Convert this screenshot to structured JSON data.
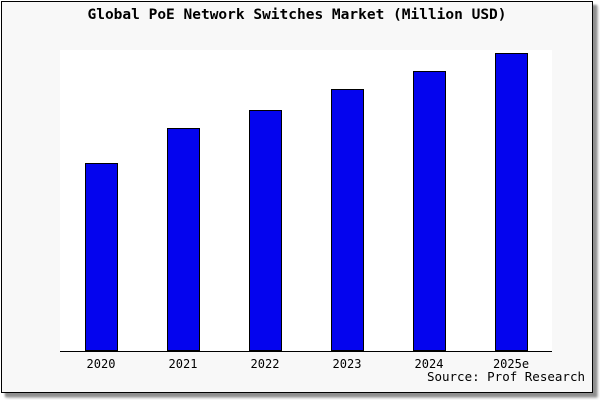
{
  "chart_data": {
    "type": "bar",
    "title": "Global PoE Network Switches Market (Million USD)",
    "categories": [
      "2020",
      "2021",
      "2022",
      "2023",
      "2024",
      "2025e"
    ],
    "values": [
      63,
      75,
      81,
      88,
      94,
      100
    ],
    "values_note": "relative index estimated from bar heights; y-axis has no tick labels",
    "xlabel": "",
    "ylabel": "",
    "ylim": [
      0,
      101
    ],
    "grid": false,
    "legend": null,
    "source_note": "Source: Prof Research"
  },
  "colors": {
    "bar_fill": "#0404ee",
    "bar_edge": "#000000",
    "figure_background": "#f8f8f8",
    "plot_background": "#ffffff",
    "axis_line": "#000000",
    "text": "#000000",
    "card_border": "#000000",
    "card_shadow": "#8f8f8f"
  }
}
